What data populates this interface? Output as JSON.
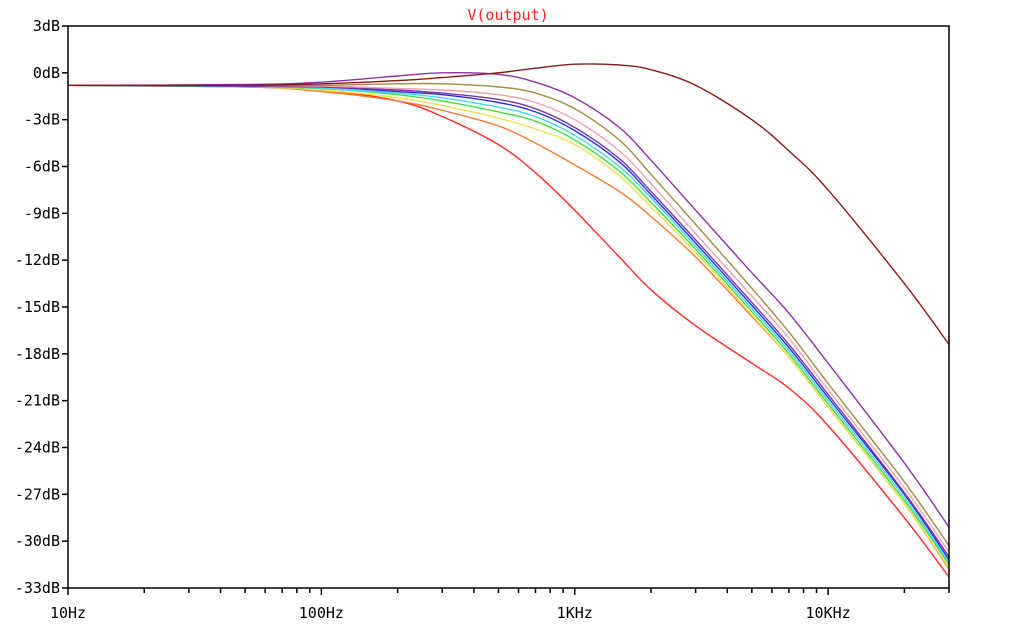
{
  "chart_data": {
    "type": "line",
    "title": "V(output)",
    "title_color": "#ff2020",
    "xscale": "log",
    "xlim": [
      10,
      30000
    ],
    "ylim": [
      -33,
      3
    ],
    "xlabel": "",
    "ylabel": "",
    "grid": false,
    "x_ticks": [
      {
        "value": 10,
        "label": "10Hz"
      },
      {
        "value": 100,
        "label": "100Hz"
      },
      {
        "value": 1000,
        "label": "1KHz"
      },
      {
        "value": 10000,
        "label": "10KHz"
      }
    ],
    "y_ticks": [
      {
        "value": 3,
        "label": "3dB"
      },
      {
        "value": 0,
        "label": "0dB"
      },
      {
        "value": -3,
        "label": "-3dB"
      },
      {
        "value": -6,
        "label": "-6dB"
      },
      {
        "value": -9,
        "label": "-9dB"
      },
      {
        "value": -12,
        "label": "-12dB"
      },
      {
        "value": -15,
        "label": "-15dB"
      },
      {
        "value": -18,
        "label": "-18dB"
      },
      {
        "value": -21,
        "label": "-21dB"
      },
      {
        "value": -24,
        "label": "-24dB"
      },
      {
        "value": -27,
        "label": "-27dB"
      },
      {
        "value": -30,
        "label": "-30dB"
      },
      {
        "value": -33,
        "label": "-33dB"
      }
    ],
    "x": [
      10,
      50,
      100,
      200,
      300,
      500,
      700,
      1000,
      1500,
      2000,
      3000,
      5000,
      7000,
      10000,
      20000,
      30000
    ],
    "series": [
      {
        "color": "#ff2a2a",
        "values": [
          -0.8,
          -0.9,
          -1.1,
          -1.8,
          -2.8,
          -4.6,
          -6.4,
          -8.8,
          -11.8,
          -13.9,
          -16.2,
          -18.6,
          -20.2,
          -22.6,
          -28.5,
          -32.3
        ]
      },
      {
        "color": "#ff7a30",
        "values": [
          -0.8,
          -0.9,
          -1.2,
          -1.8,
          -2.4,
          -3.4,
          -4.5,
          -5.9,
          -7.6,
          -9.2,
          -11.8,
          -15.6,
          -18.2,
          -21.4,
          -27.6,
          -31.8
        ]
      },
      {
        "color": "#f0e050",
        "values": [
          -0.8,
          -0.9,
          -1.1,
          -1.6,
          -2.1,
          -2.9,
          -3.6,
          -4.6,
          -6.6,
          -8.6,
          -11.5,
          -15.5,
          -18.2,
          -21.4,
          -27.6,
          -31.7
        ]
      },
      {
        "color": "#40e040",
        "values": [
          -0.8,
          -0.9,
          -1.0,
          -1.4,
          -1.8,
          -2.5,
          -3.1,
          -4.3,
          -6.3,
          -8.3,
          -11.3,
          -15.3,
          -18.0,
          -21.2,
          -27.4,
          -31.5
        ]
      },
      {
        "color": "#40d8f0",
        "values": [
          -0.8,
          -0.85,
          -1.0,
          -1.3,
          -1.6,
          -2.2,
          -2.8,
          -4.0,
          -6.0,
          -8.0,
          -11.1,
          -15.1,
          -17.8,
          -21.0,
          -27.2,
          -31.4
        ]
      },
      {
        "color": "#2a30e8",
        "values": [
          -0.8,
          -0.85,
          -0.9,
          -1.2,
          -1.4,
          -1.9,
          -2.5,
          -3.7,
          -5.7,
          -7.8,
          -10.9,
          -14.9,
          -17.6,
          -20.8,
          -27.0,
          -31.2
        ]
      },
      {
        "color": "#7a3aa0",
        "values": [
          -0.8,
          -0.85,
          -0.9,
          -1.1,
          -1.3,
          -1.7,
          -2.3,
          -3.5,
          -5.5,
          -7.6,
          -10.7,
          -14.7,
          -17.4,
          -20.6,
          -26.9,
          -31.0
        ]
      },
      {
        "color": "#f5a0b0",
        "values": [
          -0.8,
          -0.8,
          -0.85,
          -1.0,
          -1.1,
          -1.4,
          -1.9,
          -3.0,
          -5.0,
          -7.1,
          -10.3,
          -14.3,
          -17.0,
          -20.3,
          -26.6,
          -30.7
        ]
      },
      {
        "color": "#a08a40",
        "values": [
          -0.8,
          -0.8,
          -0.8,
          -0.7,
          -0.7,
          -0.9,
          -1.3,
          -2.3,
          -4.3,
          -6.5,
          -9.7,
          -13.8,
          -16.6,
          -19.9,
          -26.2,
          -30.3
        ]
      },
      {
        "color": "#9030a8",
        "values": [
          -0.8,
          -0.75,
          -0.6,
          -0.2,
          0.0,
          -0.1,
          -0.6,
          -1.6,
          -3.5,
          -5.6,
          -8.8,
          -12.8,
          -15.4,
          -18.6,
          -25.0,
          -29.1
        ]
      },
      {
        "color": "#8a1a1a",
        "values": [
          -0.8,
          -0.8,
          -0.7,
          -0.5,
          -0.3,
          0.0,
          0.3,
          0.55,
          0.5,
          0.2,
          -0.8,
          -3.0,
          -5.0,
          -7.5,
          -13.5,
          -17.4
        ]
      }
    ]
  }
}
